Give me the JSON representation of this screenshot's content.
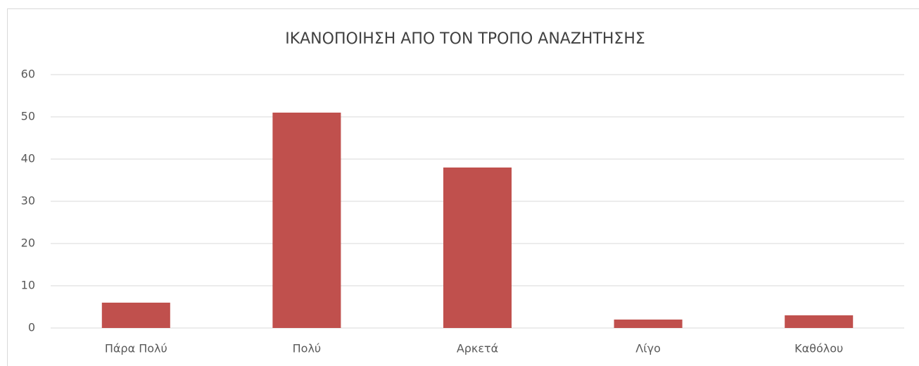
{
  "chart_data": {
    "type": "bar",
    "title": "ΙΚΑΝΟΠΟΙΗΣΗ ΑΠΟ ΤΟΝ ΤΡΟΠΟ ΑΝΑΖΗΤΗΣΗΣ",
    "categories": [
      "Πάρα Πολύ",
      "Πολύ",
      "Αρκετά",
      "Λίγο",
      "Καθόλου"
    ],
    "values": [
      6,
      51,
      38,
      2,
      3
    ],
    "color": "#c0504d",
    "ylim": [
      0,
      60
    ],
    "yticks": [
      0,
      10,
      20,
      30,
      40,
      50,
      60
    ],
    "grid": true
  }
}
